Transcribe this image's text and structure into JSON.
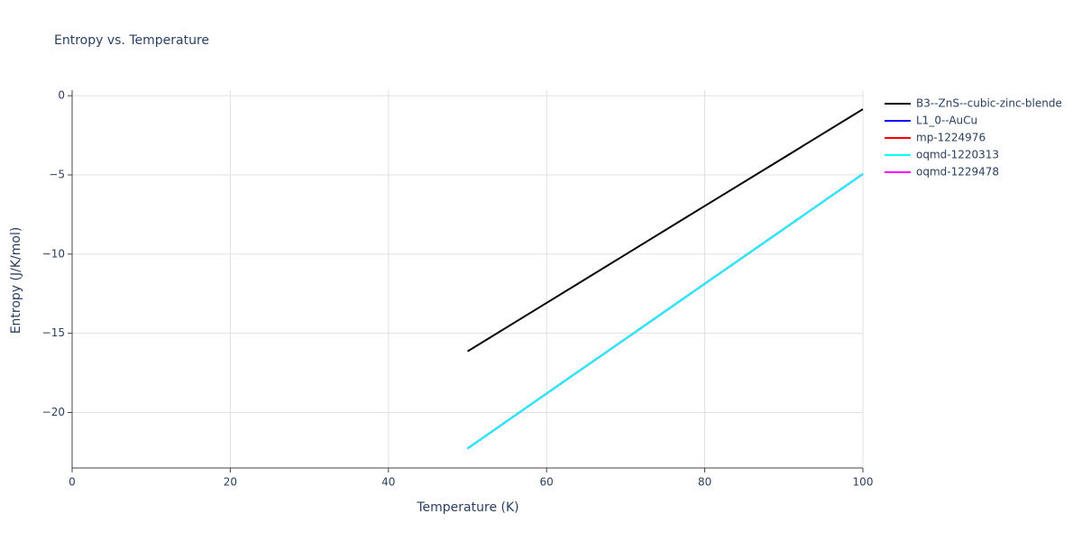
{
  "chart_data": {
    "type": "line",
    "title": "Entropy vs. Temperature",
    "x_label": "Temperature (K)",
    "y_label": "Entropy (J/K/mol)",
    "x": [
      50,
      60,
      70,
      80,
      90,
      100
    ],
    "series": [
      {
        "name": "B3--ZnS--cubic-zinc-blende",
        "color": "#000000",
        "values": [
          -16.14,
          -13.08,
          -10.02,
          -6.96,
          -3.91,
          -0.85
        ]
      },
      {
        "name": "L1_0--AuCu",
        "color": "#0000ff",
        "values": [
          -22.27,
          -18.8,
          -15.34,
          -11.87,
          -8.41,
          -4.94
        ]
      },
      {
        "name": "mp-1224976",
        "color": "#ff0000",
        "values": [
          -22.27,
          -18.8,
          -15.34,
          -11.87,
          -8.41,
          -4.94
        ]
      },
      {
        "name": "oqmd-1229478",
        "color": "#ff00ff",
        "values": [
          -22.27,
          -18.8,
          -15.34,
          -11.87,
          -8.41,
          -4.94
        ]
      },
      {
        "name": "oqmd-1220313",
        "color": "#00ffff",
        "values": [
          -22.27,
          -18.8,
          -15.34,
          -11.87,
          -8.41,
          -4.94
        ]
      }
    ],
    "xlim": [
      0,
      100
    ],
    "xticks": [
      0,
      20,
      40,
      60,
      80,
      100
    ],
    "ylim": [
      -23.5,
      0.35
    ],
    "yticks": [
      0,
      {
        "value": -5,
        "label": "−5"
      },
      {
        "value": -10,
        "label": "−10"
      },
      {
        "value": -15,
        "label": "−15"
      },
      {
        "value": -20,
        "label": "−20"
      }
    ],
    "grid": true
  }
}
